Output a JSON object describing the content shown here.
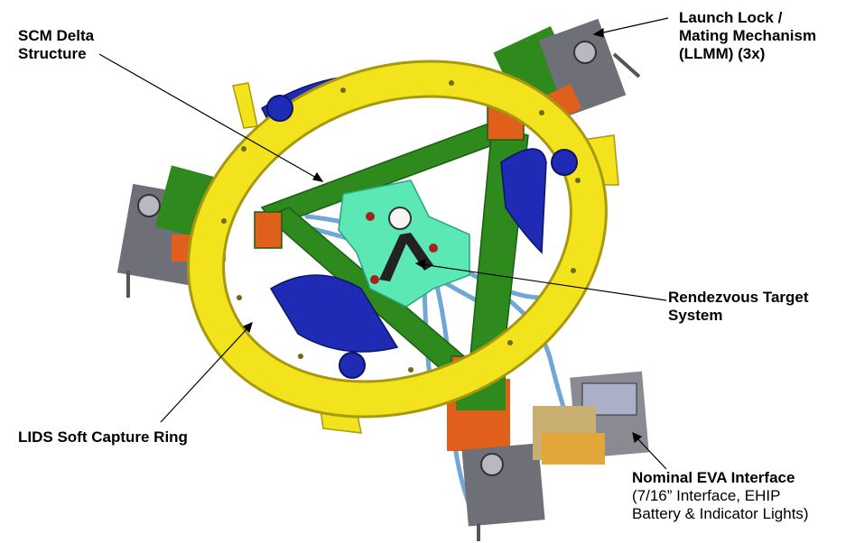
{
  "labels": {
    "scm_delta": [
      "SCM Delta",
      "Structure"
    ],
    "llmm": [
      "Launch Lock /",
      "Mating Mechanism",
      "(LLMM) (3x)"
    ],
    "rendezvous": [
      "Rendezvous Target",
      "System"
    ],
    "lids_ring": "LIDS Soft Capture Ring",
    "eva": {
      "title": "Nominal EVA Interface",
      "lines": [
        "(7/16” Interface, EHIP",
        "Battery & Indicator Lights)"
      ]
    }
  },
  "colors": {
    "ring": "#f2e31d",
    "ring_dark": "#c9b70f",
    "delta": "#2e8a1d",
    "target": "#5ce8b4",
    "blue": "#1f2bb5",
    "orange": "#e0601b",
    "gray": "#6f6f78",
    "cable": "#6fa7d6"
  }
}
